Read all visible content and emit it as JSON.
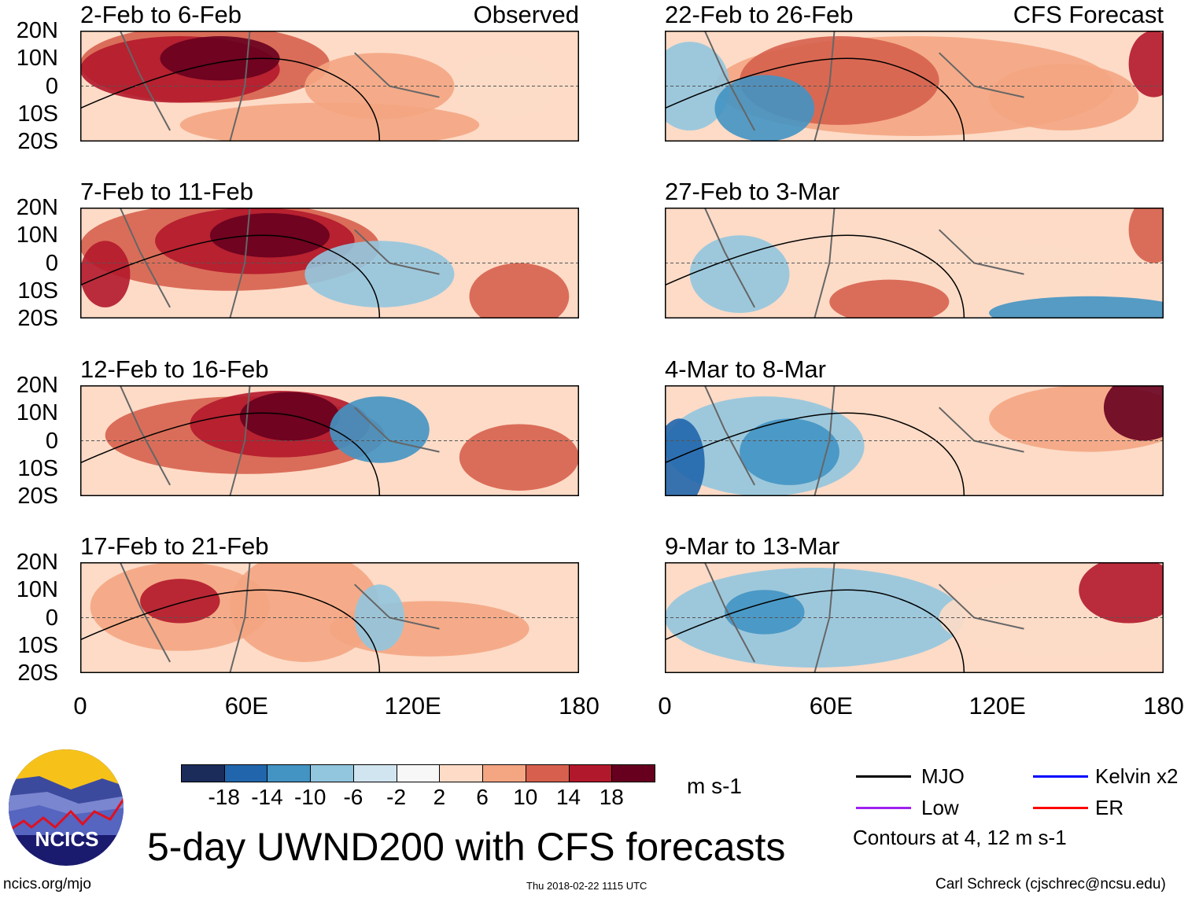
{
  "panels": [
    {
      "title": "2-Feb to 6-Feb",
      "tag": "Observed"
    },
    {
      "title": "22-Feb to 26-Feb",
      "tag": "CFS Forecast"
    },
    {
      "title": "7-Feb to 11-Feb"
    },
    {
      "title": "27-Feb to 3-Mar"
    },
    {
      "title": "12-Feb to 16-Feb"
    },
    {
      "title": "4-Mar to 8-Mar"
    },
    {
      "title": "17-Feb to 21-Feb"
    },
    {
      "title": "9-Mar to 13-Mar"
    }
  ],
  "lat_labels": [
    "20N",
    "10N",
    "0",
    "10S",
    "20S"
  ],
  "lon_labels": [
    "0",
    "60E",
    "120E",
    "180"
  ],
  "colorbar": {
    "labels": [
      "-18",
      "-14",
      "-10",
      "-6",
      "-2",
      "2",
      "6",
      "10",
      "14",
      "18"
    ],
    "colors": [
      "#1b2c5a",
      "#2166ac",
      "#4393c3",
      "#92c5de",
      "#d1e5f0",
      "#f7f7f7",
      "#fddbc7",
      "#f4a582",
      "#d6604d",
      "#b2182b",
      "#67001f"
    ],
    "units": "m s-1"
  },
  "legend": {
    "items": [
      {
        "label": "MJO",
        "color": "#000000"
      },
      {
        "label": "Kelvin x2",
        "color": "#0000ff"
      },
      {
        "label": "Low",
        "color": "#a020f0"
      },
      {
        "label": "ER",
        "color": "#ff0000"
      }
    ],
    "note": "Contours at 4, 12 m s-1"
  },
  "logo": {
    "text": "NCICS"
  },
  "title": "5-day UWND200 with CFS forecasts",
  "footer": {
    "url": "ncics.org/mjo",
    "timestamp": "Thu 2018-02-22 1115 UTC",
    "author": "Carl Schreck (cjschrec@ncsu.edu)"
  }
}
